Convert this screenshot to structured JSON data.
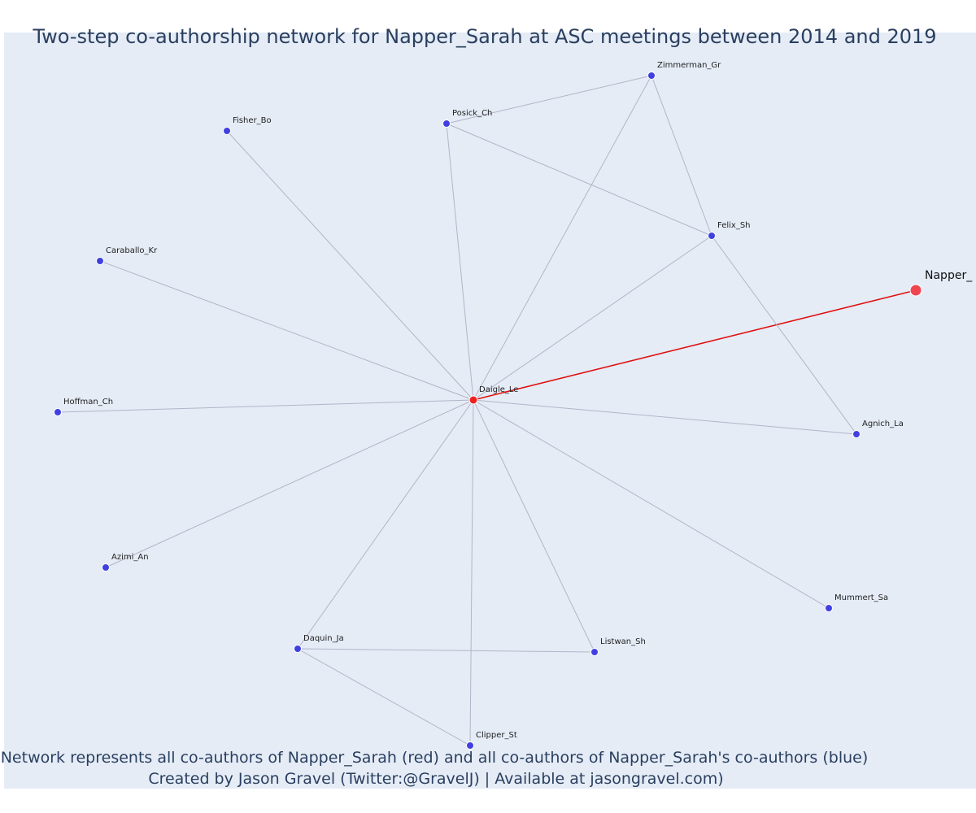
{
  "title": "Two-step co-authorship network for Napper_Sarah at ASC meetings between 2014 and 2019",
  "caption_line1": "Network represents all co-authors of Napper_Sarah (red) and all co-authors of Napper_Sarah's co-authors (blue)",
  "caption_line2": "Created by Jason Gravel (Twitter:@GravelJ) | Available at jasongravel.com)",
  "colors": {
    "plot_background": "#e5ecf6",
    "focus_node": "#ef4550",
    "first_step_node": "#ef2020",
    "second_step_node": "#4040e0",
    "edge": "#b4b4c8",
    "focus_edge": "#e01010",
    "title": "#2a3f5f"
  },
  "nodes": [
    {
      "id": "napper",
      "label": "Napper_",
      "role": "focus"
    },
    {
      "id": "daigle",
      "label": "Daigle_Le",
      "role": "co-author"
    },
    {
      "id": "zimmerman",
      "label": "Zimmerman_Gr",
      "role": "second-step"
    },
    {
      "id": "posick",
      "label": "Posick_Ch",
      "role": "second-step"
    },
    {
      "id": "fisher",
      "label": "Fisher_Bo",
      "role": "second-step"
    },
    {
      "id": "felix",
      "label": "Felix_Sh",
      "role": "second-step"
    },
    {
      "id": "caraballo",
      "label": "Caraballo_Kr",
      "role": "second-step"
    },
    {
      "id": "hoffman",
      "label": "Hoffman_Ch",
      "role": "second-step"
    },
    {
      "id": "agnich",
      "label": "Agnich_La",
      "role": "second-step"
    },
    {
      "id": "azimi",
      "label": "Azimi_An",
      "role": "second-step"
    },
    {
      "id": "mummert",
      "label": "Mummert_Sa",
      "role": "second-step"
    },
    {
      "id": "daquin",
      "label": "Daquin_Ja",
      "role": "second-step"
    },
    {
      "id": "listwan",
      "label": "Listwan_Sh",
      "role": "second-step"
    },
    {
      "id": "clipper",
      "label": "Clipper_St",
      "role": "second-step"
    }
  ],
  "edges": [
    {
      "source": "daigle",
      "target": "napper",
      "type": "focus"
    },
    {
      "source": "daigle",
      "target": "zimmerman"
    },
    {
      "source": "daigle",
      "target": "posick"
    },
    {
      "source": "daigle",
      "target": "fisher"
    },
    {
      "source": "daigle",
      "target": "felix"
    },
    {
      "source": "daigle",
      "target": "caraballo"
    },
    {
      "source": "daigle",
      "target": "hoffman"
    },
    {
      "source": "daigle",
      "target": "agnich"
    },
    {
      "source": "daigle",
      "target": "azimi"
    },
    {
      "source": "daigle",
      "target": "mummert"
    },
    {
      "source": "daigle",
      "target": "daquin"
    },
    {
      "source": "daigle",
      "target": "listwan"
    },
    {
      "source": "daigle",
      "target": "clipper"
    },
    {
      "source": "posick",
      "target": "zimmerman"
    },
    {
      "source": "posick",
      "target": "felix"
    },
    {
      "source": "zimmerman",
      "target": "felix"
    },
    {
      "source": "felix",
      "target": "agnich"
    },
    {
      "source": "daquin",
      "target": "listwan"
    },
    {
      "source": "daquin",
      "target": "clipper"
    }
  ]
}
